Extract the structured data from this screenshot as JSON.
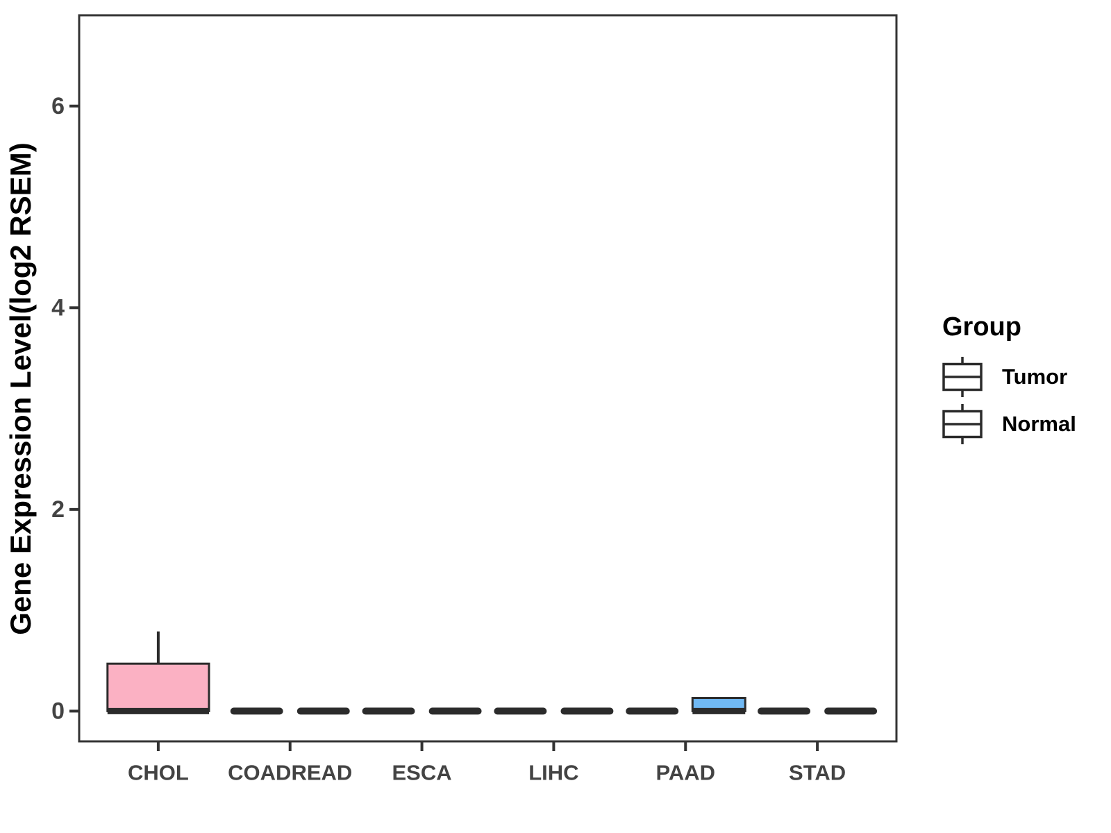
{
  "figure": {
    "background": "#FFFFFF",
    "panel_border_color": "#333333",
    "axis_text_color": "#434343",
    "box_outline_color": "#2B2B2B"
  },
  "chart_data": {
    "type": "boxplot",
    "title": "",
    "xlabel": "",
    "ylabel": "Gene Expression Level(log2 RSEM)",
    "categories": [
      "CHOL",
      "COADREAD",
      "ESCA",
      "LIHC",
      "PAAD",
      "STAD"
    ],
    "groups": [
      "Tumor",
      "Normal"
    ],
    "group_colors": {
      "Tumor": "#FBB1C3",
      "Normal": "#70B9F4"
    },
    "yticks": [
      0,
      2,
      4,
      6
    ],
    "ylim": [
      -0.3,
      6.9
    ],
    "grid": false,
    "legend": {
      "title": "Group",
      "position": "right"
    },
    "boxes": [
      {
        "category": "CHOL",
        "group": "Tumor",
        "whisker_low": 0,
        "q1": 0,
        "median": 0,
        "q3": 0.47,
        "whisker_high": 0.79
      },
      {
        "category": "COADREAD",
        "group": "Tumor",
        "whisker_low": 0,
        "q1": 0,
        "median": 0,
        "q3": 0,
        "whisker_high": 0
      },
      {
        "category": "COADREAD",
        "group": "Normal",
        "whisker_low": 0,
        "q1": 0,
        "median": 0,
        "q3": 0,
        "whisker_high": 0
      },
      {
        "category": "ESCA",
        "group": "Tumor",
        "whisker_low": 0,
        "q1": 0,
        "median": 0,
        "q3": 0,
        "whisker_high": 0
      },
      {
        "category": "ESCA",
        "group": "Normal",
        "whisker_low": 0,
        "q1": 0,
        "median": 0,
        "q3": 0,
        "whisker_high": 0
      },
      {
        "category": "LIHC",
        "group": "Tumor",
        "whisker_low": 0,
        "q1": 0,
        "median": 0,
        "q3": 0,
        "whisker_high": 0
      },
      {
        "category": "LIHC",
        "group": "Normal",
        "whisker_low": 0,
        "q1": 0,
        "median": 0,
        "q3": 0,
        "whisker_high": 0
      },
      {
        "category": "PAAD",
        "group": "Tumor",
        "whisker_low": 0,
        "q1": 0,
        "median": 0,
        "q3": 0,
        "whisker_high": 0
      },
      {
        "category": "PAAD",
        "group": "Normal",
        "whisker_low": 0,
        "q1": 0,
        "median": 0,
        "q3": 0.13,
        "whisker_high": 0.13
      },
      {
        "category": "STAD",
        "group": "Tumor",
        "whisker_low": 0,
        "q1": 0,
        "median": 0,
        "q3": 0,
        "whisker_high": 0
      },
      {
        "category": "STAD",
        "group": "Normal",
        "whisker_low": 0,
        "q1": 0,
        "median": 0,
        "q3": 0,
        "whisker_high": 0
      }
    ]
  }
}
